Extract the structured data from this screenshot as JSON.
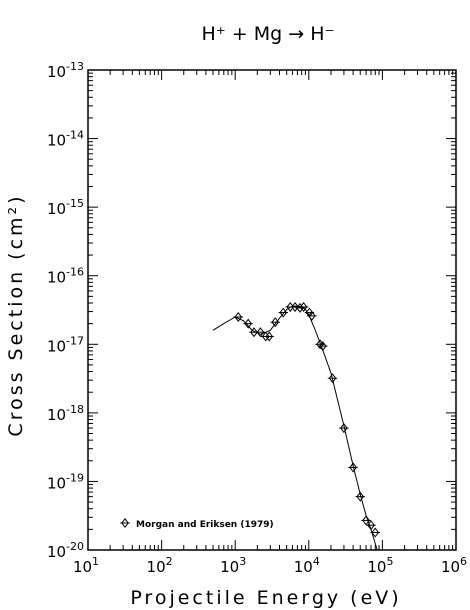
{
  "chart_data": {
    "type": "scatter",
    "title": "H⁺ + Mg → H⁻",
    "xlabel": "Projectile Energy (eV)",
    "ylabel": "Cross Section (cm²)",
    "x_scale": "log",
    "y_scale": "log",
    "xlim": [
      10,
      1000000
    ],
    "ylim": [
      1e-20,
      1e-13
    ],
    "x_ticks": [
      {
        "base": "10",
        "exp": "1"
      },
      {
        "base": "10",
        "exp": "2"
      },
      {
        "base": "10",
        "exp": "3"
      },
      {
        "base": "10",
        "exp": "4"
      },
      {
        "base": "10",
        "exp": "5"
      },
      {
        "base": "10",
        "exp": "6"
      }
    ],
    "y_ticks": [
      {
        "base": "10",
        "exp": "-20"
      },
      {
        "base": "10",
        "exp": "-19"
      },
      {
        "base": "10",
        "exp": "-18"
      },
      {
        "base": "10",
        "exp": "-17"
      },
      {
        "base": "10",
        "exp": "-16"
      },
      {
        "base": "10",
        "exp": "-15"
      },
      {
        "base": "10",
        "exp": "-14"
      },
      {
        "base": "10",
        "exp": "-13"
      }
    ],
    "grid": false,
    "legend_position": "bottom-left",
    "series": [
      {
        "name": "Morgan and Eriksen (1979)",
        "marker": "diamond",
        "x": [
          1100,
          1500,
          1800,
          2200,
          2600,
          2900,
          3500,
          4500,
          5600,
          6500,
          7600,
          8500,
          10200,
          11000,
          14200,
          15500,
          21000,
          30000,
          40000,
          50000,
          60000,
          70000,
          80000
        ],
        "y": [
          2.5e-17,
          2e-17,
          1.5e-17,
          1.5e-17,
          1.3e-17,
          1.3e-17,
          2.1e-17,
          2.9e-17,
          3.5e-17,
          3.5e-17,
          3.4e-17,
          3.5e-17,
          2.9e-17,
          2.6e-17,
          1e-17,
          9.4e-18,
          3.2e-18,
          6e-19,
          1.6e-19,
          6e-20,
          2.7e-20,
          2.3e-20,
          1.8e-20
        ]
      }
    ],
    "fit_curve": {
      "x": [
        500,
        700,
        1000,
        1300,
        1700,
        2200,
        3000,
        4000,
        5000,
        6000,
        7000,
        8000,
        9000,
        10000,
        12000,
        15000,
        20000,
        30000,
        40000,
        50000,
        60000,
        70000,
        85000
      ],
      "y": [
        1.6e-17,
        2e-17,
        2.5e-17,
        2.2e-17,
        1.6e-17,
        1.4e-17,
        1.6e-17,
        2.4e-17,
        3.2e-17,
        3.6e-17,
        3.6e-17,
        3.5e-17,
        3.2e-17,
        2.7e-17,
        1.7e-17,
        9e-18,
        3.8e-18,
        6.5e-19,
        1.7e-19,
        6.5e-20,
        3.2e-20,
        2e-20,
        1e-20
      ]
    }
  }
}
